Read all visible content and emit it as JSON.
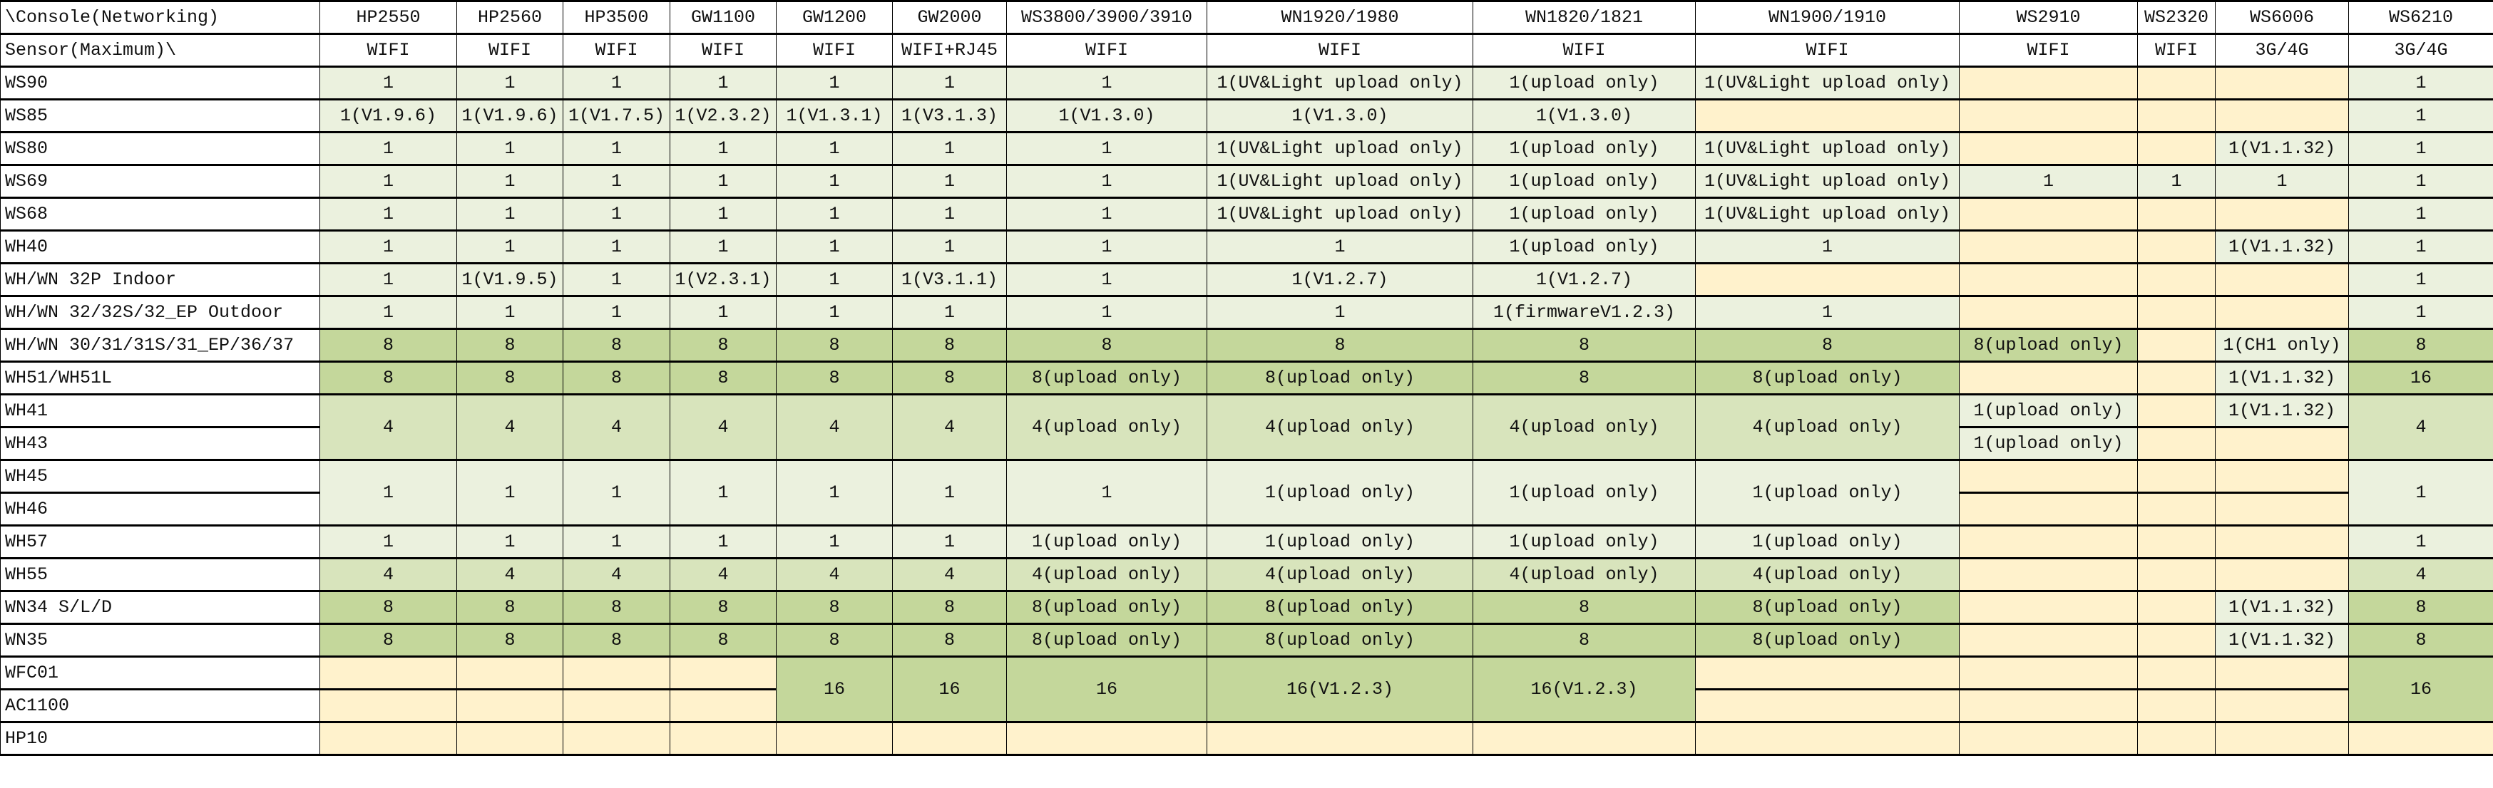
{
  "palette": {
    "W": "#ffffff",
    "L": "#ebf1de",
    "M": "#d8e4bc",
    "D": "#c4d79b",
    "Y": "#fff2cc"
  },
  "header": {
    "corner_top": "\\Console(Networking)",
    "corner_bottom": "Sensor(Maximum)\\",
    "columns": [
      {
        "name": "HP2550",
        "conn": "WIFI"
      },
      {
        "name": "HP2560",
        "conn": "WIFI"
      },
      {
        "name": "HP3500",
        "conn": "WIFI"
      },
      {
        "name": "GW1100",
        "conn": "WIFI"
      },
      {
        "name": "GW1200",
        "conn": "WIFI"
      },
      {
        "name": "GW2000",
        "conn": "WIFI+RJ45"
      },
      {
        "name": "WS3800/3900/3910",
        "conn": "WIFI"
      },
      {
        "name": "WN1920/1980",
        "conn": "WIFI"
      },
      {
        "name": "WN1820/1821",
        "conn": "WIFI"
      },
      {
        "name": "WN1900/1910",
        "conn": "WIFI"
      },
      {
        "name": "WS2910",
        "conn": "WIFI"
      },
      {
        "name": "WS2320",
        "conn": "WIFI"
      },
      {
        "name": "WS6006",
        "conn": "3G/4G"
      },
      {
        "name": "WS6210",
        "conn": "3G/4G"
      }
    ]
  },
  "rows": [
    {
      "label": "WS90",
      "cells": [
        {
          "v": "1",
          "c": "L"
        },
        {
          "v": "1",
          "c": "L"
        },
        {
          "v": "1",
          "c": "L"
        },
        {
          "v": "1",
          "c": "L"
        },
        {
          "v": "1",
          "c": "L"
        },
        {
          "v": "1",
          "c": "L"
        },
        {
          "v": "1",
          "c": "L"
        },
        {
          "v": "1(UV&Light upload only)",
          "c": "L"
        },
        {
          "v": "1(upload only)",
          "c": "L"
        },
        {
          "v": "1(UV&Light upload only)",
          "c": "L"
        },
        {
          "v": "",
          "c": "Y"
        },
        {
          "v": "",
          "c": "Y"
        },
        {
          "v": "",
          "c": "Y"
        },
        {
          "v": "1",
          "c": "L"
        }
      ]
    },
    {
      "label": "WS85",
      "cells": [
        {
          "v": "1(V1.9.6)",
          "c": "L"
        },
        {
          "v": "1(V1.9.6)",
          "c": "L"
        },
        {
          "v": "1(V1.7.5)",
          "c": "L"
        },
        {
          "v": "1(V2.3.2)",
          "c": "L"
        },
        {
          "v": "1(V1.3.1)",
          "c": "L"
        },
        {
          "v": "1(V3.1.3)",
          "c": "L"
        },
        {
          "v": "1(V1.3.0)",
          "c": "L"
        },
        {
          "v": "1(V1.3.0)",
          "c": "L"
        },
        {
          "v": "1(V1.3.0)",
          "c": "L"
        },
        {
          "v": "",
          "c": "Y"
        },
        {
          "v": "",
          "c": "Y"
        },
        {
          "v": "",
          "c": "Y"
        },
        {
          "v": "",
          "c": "Y"
        },
        {
          "v": "1",
          "c": "L"
        }
      ]
    },
    {
      "label": "WS80",
      "cells": [
        {
          "v": "1",
          "c": "L"
        },
        {
          "v": "1",
          "c": "L"
        },
        {
          "v": "1",
          "c": "L"
        },
        {
          "v": "1",
          "c": "L"
        },
        {
          "v": "1",
          "c": "L"
        },
        {
          "v": "1",
          "c": "L"
        },
        {
          "v": "1",
          "c": "L"
        },
        {
          "v": "1(UV&Light upload only)",
          "c": "L"
        },
        {
          "v": "1(upload only)",
          "c": "L"
        },
        {
          "v": "1(UV&Light upload only)",
          "c": "L"
        },
        {
          "v": "",
          "c": "Y"
        },
        {
          "v": "",
          "c": "Y"
        },
        {
          "v": "1(V1.1.32)",
          "c": "L"
        },
        {
          "v": "1",
          "c": "L"
        }
      ]
    },
    {
      "label": "WS69",
      "cells": [
        {
          "v": "1",
          "c": "L"
        },
        {
          "v": "1",
          "c": "L"
        },
        {
          "v": "1",
          "c": "L"
        },
        {
          "v": "1",
          "c": "L"
        },
        {
          "v": "1",
          "c": "L"
        },
        {
          "v": "1",
          "c": "L"
        },
        {
          "v": "1",
          "c": "L"
        },
        {
          "v": "1(UV&Light upload only)",
          "c": "L"
        },
        {
          "v": "1(upload only)",
          "c": "L"
        },
        {
          "v": "1(UV&Light upload only)",
          "c": "L"
        },
        {
          "v": "1",
          "c": "L"
        },
        {
          "v": "1",
          "c": "L"
        },
        {
          "v": "1",
          "c": "L"
        },
        {
          "v": "1",
          "c": "L"
        }
      ]
    },
    {
      "label": "WS68",
      "cells": [
        {
          "v": "1",
          "c": "L"
        },
        {
          "v": "1",
          "c": "L"
        },
        {
          "v": "1",
          "c": "L"
        },
        {
          "v": "1",
          "c": "L"
        },
        {
          "v": "1",
          "c": "L"
        },
        {
          "v": "1",
          "c": "L"
        },
        {
          "v": "1",
          "c": "L"
        },
        {
          "v": "1(UV&Light upload only)",
          "c": "L"
        },
        {
          "v": "1(upload only)",
          "c": "L"
        },
        {
          "v": "1(UV&Light upload only)",
          "c": "L"
        },
        {
          "v": "",
          "c": "Y"
        },
        {
          "v": "",
          "c": "Y"
        },
        {
          "v": "",
          "c": "Y"
        },
        {
          "v": "1",
          "c": "L"
        }
      ]
    },
    {
      "label": "WH40",
      "cells": [
        {
          "v": "1",
          "c": "L"
        },
        {
          "v": "1",
          "c": "L"
        },
        {
          "v": "1",
          "c": "L"
        },
        {
          "v": "1",
          "c": "L"
        },
        {
          "v": "1",
          "c": "L"
        },
        {
          "v": "1",
          "c": "L"
        },
        {
          "v": "1",
          "c": "L"
        },
        {
          "v": "1",
          "c": "L"
        },
        {
          "v": "1(upload only)",
          "c": "L"
        },
        {
          "v": "1",
          "c": "L"
        },
        {
          "v": "",
          "c": "Y"
        },
        {
          "v": "",
          "c": "Y"
        },
        {
          "v": "1(V1.1.32)",
          "c": "L"
        },
        {
          "v": "1",
          "c": "L"
        }
      ]
    },
    {
      "label": "WH/WN 32P Indoor",
      "cells": [
        {
          "v": "1",
          "c": "L"
        },
        {
          "v": "1(V1.9.5)",
          "c": "L"
        },
        {
          "v": "1",
          "c": "L"
        },
        {
          "v": "1(V2.3.1)",
          "c": "L"
        },
        {
          "v": "1",
          "c": "L"
        },
        {
          "v": "1(V3.1.1)",
          "c": "L"
        },
        {
          "v": "1",
          "c": "L"
        },
        {
          "v": "1(V1.2.7)",
          "c": "L"
        },
        {
          "v": "1(V1.2.7)",
          "c": "L"
        },
        {
          "v": "",
          "c": "Y"
        },
        {
          "v": "",
          "c": "Y"
        },
        {
          "v": "",
          "c": "Y"
        },
        {
          "v": "",
          "c": "Y"
        },
        {
          "v": "1",
          "c": "L"
        }
      ]
    },
    {
      "label": "WH/WN 32/32S/32_EP Outdoor",
      "cells": [
        {
          "v": "1",
          "c": "L"
        },
        {
          "v": "1",
          "c": "L"
        },
        {
          "v": "1",
          "c": "L"
        },
        {
          "v": "1",
          "c": "L"
        },
        {
          "v": "1",
          "c": "L"
        },
        {
          "v": "1",
          "c": "L"
        },
        {
          "v": "1",
          "c": "L"
        },
        {
          "v": "1",
          "c": "L"
        },
        {
          "v": "1(firmwareV1.2.3)",
          "c": "L"
        },
        {
          "v": "1",
          "c": "L"
        },
        {
          "v": "",
          "c": "Y"
        },
        {
          "v": "",
          "c": "Y"
        },
        {
          "v": "",
          "c": "Y"
        },
        {
          "v": "1",
          "c": "L"
        }
      ]
    },
    {
      "label": "WH/WN 30/31/31S/31_EP/36/37",
      "cells": [
        {
          "v": "8",
          "c": "D"
        },
        {
          "v": "8",
          "c": "D"
        },
        {
          "v": "8",
          "c": "D"
        },
        {
          "v": "8",
          "c": "D"
        },
        {
          "v": "8",
          "c": "D"
        },
        {
          "v": "8",
          "c": "D"
        },
        {
          "v": "8",
          "c": "D"
        },
        {
          "v": "8",
          "c": "D"
        },
        {
          "v": "8",
          "c": "D"
        },
        {
          "v": "8",
          "c": "D"
        },
        {
          "v": "8(upload only)",
          "c": "D"
        },
        {
          "v": "",
          "c": "Y"
        },
        {
          "v": "1(CH1 only)",
          "c": "L"
        },
        {
          "v": "8",
          "c": "D"
        }
      ]
    },
    {
      "label": "WH51/WH51L",
      "cells": [
        {
          "v": "8",
          "c": "D"
        },
        {
          "v": "8",
          "c": "D"
        },
        {
          "v": "8",
          "c": "D"
        },
        {
          "v": "8",
          "c": "D"
        },
        {
          "v": "8",
          "c": "D"
        },
        {
          "v": "8",
          "c": "D"
        },
        {
          "v": "8(upload only)",
          "c": "D"
        },
        {
          "v": "8(upload only)",
          "c": "D"
        },
        {
          "v": "8",
          "c": "D"
        },
        {
          "v": "8(upload only)",
          "c": "D"
        },
        {
          "v": "",
          "c": "Y"
        },
        {
          "v": "",
          "c": "Y"
        },
        {
          "v": "1(V1.1.32)",
          "c": "L"
        },
        {
          "v": "16",
          "c": "D"
        }
      ]
    },
    {
      "label": "WH41",
      "cells": [
        {
          "v": "4",
          "c": "M",
          "span": 2
        },
        {
          "v": "4",
          "c": "M",
          "span": 2
        },
        {
          "v": "4",
          "c": "M",
          "span": 2
        },
        {
          "v": "4",
          "c": "M",
          "span": 2
        },
        {
          "v": "4",
          "c": "M",
          "span": 2
        },
        {
          "v": "4",
          "c": "M",
          "span": 2
        },
        {
          "v": "4(upload only)",
          "c": "M",
          "span": 2
        },
        {
          "v": "4(upload only)",
          "c": "M",
          "span": 2
        },
        {
          "v": "4(upload only)",
          "c": "M",
          "span": 2
        },
        {
          "v": "4(upload only)",
          "c": "M",
          "span": 2
        },
        {
          "v": "1(upload only)",
          "c": "L"
        },
        {
          "v": "",
          "c": "Y"
        },
        {
          "v": "1(V1.1.32)",
          "c": "L"
        },
        {
          "v": "4",
          "c": "M",
          "span": 2
        }
      ]
    },
    {
      "label": "WH43",
      "cells": [
        {
          "v": "1(upload only)",
          "c": "L"
        },
        {
          "v": "",
          "c": "Y"
        },
        {
          "v": "",
          "c": "Y"
        }
      ]
    },
    {
      "label": "WH45",
      "cells": [
        {
          "v": "1",
          "c": "L",
          "span": 2
        },
        {
          "v": "1",
          "c": "L",
          "span": 2
        },
        {
          "v": "1",
          "c": "L",
          "span": 2
        },
        {
          "v": "1",
          "c": "L",
          "span": 2
        },
        {
          "v": "1",
          "c": "L",
          "span": 2
        },
        {
          "v": "1",
          "c": "L",
          "span": 2
        },
        {
          "v": "1",
          "c": "L",
          "span": 2
        },
        {
          "v": "1(upload only)",
          "c": "L",
          "span": 2
        },
        {
          "v": "1(upload only)",
          "c": "L",
          "span": 2
        },
        {
          "v": "1(upload only)",
          "c": "L",
          "span": 2
        },
        {
          "v": "",
          "c": "Y"
        },
        {
          "v": "",
          "c": "Y"
        },
        {
          "v": "",
          "c": "Y"
        },
        {
          "v": "1",
          "c": "L",
          "span": 2
        }
      ]
    },
    {
      "label": "WH46",
      "cells": [
        {
          "v": "",
          "c": "Y"
        },
        {
          "v": "",
          "c": "Y"
        },
        {
          "v": "",
          "c": "Y"
        }
      ]
    },
    {
      "label": "WH57",
      "cells": [
        {
          "v": "1",
          "c": "L"
        },
        {
          "v": "1",
          "c": "L"
        },
        {
          "v": "1",
          "c": "L"
        },
        {
          "v": "1",
          "c": "L"
        },
        {
          "v": "1",
          "c": "L"
        },
        {
          "v": "1",
          "c": "L"
        },
        {
          "v": "1(upload only)",
          "c": "L"
        },
        {
          "v": "1(upload only)",
          "c": "L"
        },
        {
          "v": "1(upload only)",
          "c": "L"
        },
        {
          "v": "1(upload only)",
          "c": "L"
        },
        {
          "v": "",
          "c": "Y"
        },
        {
          "v": "",
          "c": "Y"
        },
        {
          "v": "",
          "c": "Y"
        },
        {
          "v": "1",
          "c": "L"
        }
      ]
    },
    {
      "label": "WH55",
      "cells": [
        {
          "v": "4",
          "c": "M"
        },
        {
          "v": "4",
          "c": "M"
        },
        {
          "v": "4",
          "c": "M"
        },
        {
          "v": "4",
          "c": "M"
        },
        {
          "v": "4",
          "c": "M"
        },
        {
          "v": "4",
          "c": "M"
        },
        {
          "v": "4(upload only)",
          "c": "M"
        },
        {
          "v": "4(upload only)",
          "c": "M"
        },
        {
          "v": "4(upload only)",
          "c": "M"
        },
        {
          "v": "4(upload only)",
          "c": "M"
        },
        {
          "v": "",
          "c": "Y"
        },
        {
          "v": "",
          "c": "Y"
        },
        {
          "v": "",
          "c": "Y"
        },
        {
          "v": "4",
          "c": "M"
        }
      ]
    },
    {
      "label": "WN34 S/L/D",
      "cells": [
        {
          "v": "8",
          "c": "D"
        },
        {
          "v": "8",
          "c": "D"
        },
        {
          "v": "8",
          "c": "D"
        },
        {
          "v": "8",
          "c": "D"
        },
        {
          "v": "8",
          "c": "D"
        },
        {
          "v": "8",
          "c": "D"
        },
        {
          "v": "8(upload only)",
          "c": "D"
        },
        {
          "v": "8(upload only)",
          "c": "D"
        },
        {
          "v": "8",
          "c": "D"
        },
        {
          "v": "8(upload only)",
          "c": "D"
        },
        {
          "v": "",
          "c": "Y"
        },
        {
          "v": "",
          "c": "Y"
        },
        {
          "v": "1(V1.1.32)",
          "c": "L"
        },
        {
          "v": "8",
          "c": "D"
        }
      ]
    },
    {
      "label": "WN35",
      "cells": [
        {
          "v": "8",
          "c": "D"
        },
        {
          "v": "8",
          "c": "D"
        },
        {
          "v": "8",
          "c": "D"
        },
        {
          "v": "8",
          "c": "D"
        },
        {
          "v": "8",
          "c": "D"
        },
        {
          "v": "8",
          "c": "D"
        },
        {
          "v": "8(upload only)",
          "c": "D"
        },
        {
          "v": "8(upload only)",
          "c": "D"
        },
        {
          "v": "8",
          "c": "D"
        },
        {
          "v": "8(upload only)",
          "c": "D"
        },
        {
          "v": "",
          "c": "Y"
        },
        {
          "v": "",
          "c": "Y"
        },
        {
          "v": "1(V1.1.32)",
          "c": "L"
        },
        {
          "v": "8",
          "c": "D"
        }
      ]
    },
    {
      "label": "WFC01",
      "cells": [
        {
          "v": "",
          "c": "Y"
        },
        {
          "v": "",
          "c": "Y"
        },
        {
          "v": "",
          "c": "Y"
        },
        {
          "v": "",
          "c": "Y"
        },
        {
          "v": "16",
          "c": "D",
          "span": 2
        },
        {
          "v": "16",
          "c": "D",
          "span": 2
        },
        {
          "v": "16",
          "c": "D",
          "span": 2
        },
        {
          "v": "16(V1.2.3)",
          "c": "D",
          "span": 2
        },
        {
          "v": "16(V1.2.3)",
          "c": "D",
          "span": 2
        },
        {
          "v": "",
          "c": "Y"
        },
        {
          "v": "",
          "c": "Y"
        },
        {
          "v": "",
          "c": "Y"
        },
        {
          "v": "",
          "c": "Y"
        },
        {
          "v": "16",
          "c": "D",
          "span": 2
        }
      ]
    },
    {
      "label": "AC1100",
      "cells": [
        {
          "v": "",
          "c": "Y"
        },
        {
          "v": "",
          "c": "Y"
        },
        {
          "v": "",
          "c": "Y"
        },
        {
          "v": "",
          "c": "Y"
        },
        {
          "v": "",
          "c": "Y"
        },
        {
          "v": "",
          "c": "Y"
        },
        {
          "v": "",
          "c": "Y"
        },
        {
          "v": "",
          "c": "Y"
        }
      ]
    },
    {
      "label": "HP10",
      "cells": [
        {
          "v": "",
          "c": "Y"
        },
        {
          "v": "",
          "c": "Y"
        },
        {
          "v": "",
          "c": "Y"
        },
        {
          "v": "",
          "c": "Y"
        },
        {
          "v": "",
          "c": "Y"
        },
        {
          "v": "",
          "c": "Y"
        },
        {
          "v": "",
          "c": "Y"
        },
        {
          "v": "",
          "c": "Y"
        },
        {
          "v": "",
          "c": "Y"
        },
        {
          "v": "",
          "c": "Y"
        },
        {
          "v": "",
          "c": "Y"
        },
        {
          "v": "",
          "c": "Y"
        },
        {
          "v": "",
          "c": "Y"
        },
        {
          "v": "",
          "c": "Y"
        }
      ]
    }
  ]
}
